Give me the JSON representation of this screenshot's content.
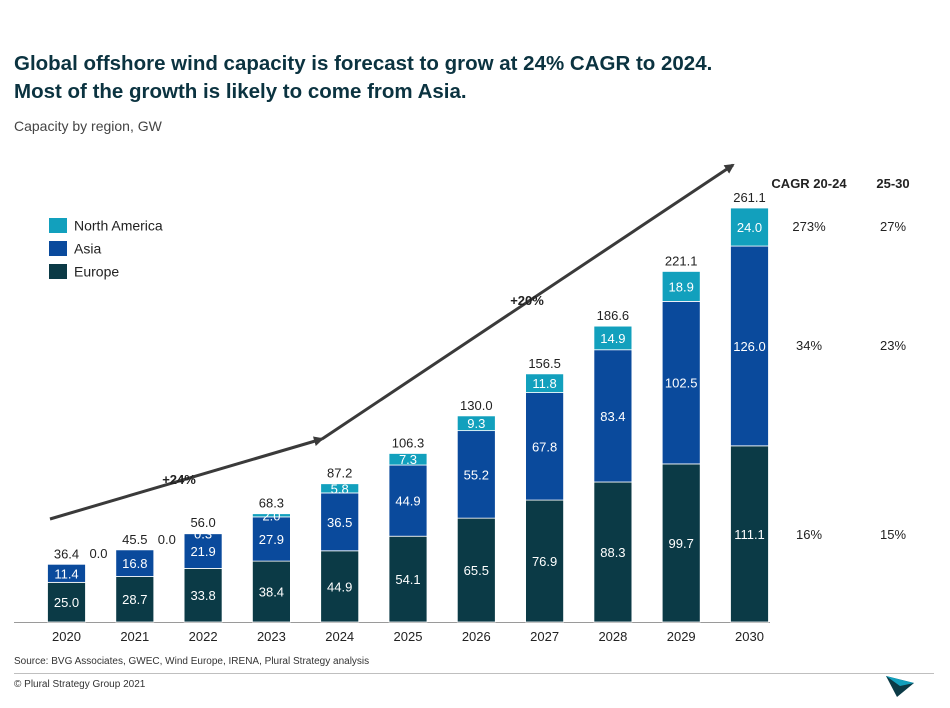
{
  "title_line1": "Global offshore wind capacity is forecast to grow at 24% CAGR to 2024.",
  "title_line2": "Most of the growth is likely to come from Asia.",
  "subtitle": "Capacity by region, GW",
  "source": "Source: BVG Associates, GWEC, Wind Europe, IRENA, Plural Strategy analysis",
  "copyright": "© Plural Strategy Group 2021",
  "colors": {
    "europe": "#0b3a46",
    "asia": "#0a4a9c",
    "north_america": "#12a0bd",
    "text": "#222222"
  },
  "chart_data": {
    "type": "bar",
    "stacked": true,
    "categories": [
      "2020",
      "2021",
      "2022",
      "2023",
      "2024",
      "2025",
      "2026",
      "2027",
      "2028",
      "2029",
      "2030"
    ],
    "series": [
      {
        "name": "Europe",
        "values": [
          25.0,
          28.7,
          33.8,
          38.4,
          44.9,
          54.1,
          65.5,
          76.9,
          88.3,
          99.7,
          111.1
        ]
      },
      {
        "name": "Asia",
        "values": [
          11.4,
          16.8,
          21.9,
          27.9,
          36.5,
          44.9,
          55.2,
          67.8,
          83.4,
          102.5,
          126.0
        ]
      },
      {
        "name": "North America",
        "values": [
          0.0,
          0.0,
          0.3,
          2.0,
          5.8,
          7.3,
          9.3,
          11.8,
          14.9,
          18.9,
          24.0
        ]
      }
    ],
    "totals": [
      "36.4",
      "45.5",
      "56.0",
      "68.3",
      "87.2",
      "106.3",
      "130.0",
      "156.5",
      "186.6",
      "221.1",
      "261.1"
    ],
    "legend": [
      "North America",
      "Asia",
      "Europe"
    ],
    "legend_position": "top-left",
    "ylim": [
      0,
      261.1
    ],
    "annotations": [
      "+24%",
      "+20%"
    ],
    "cagr_table": {
      "headers": [
        "CAGR 20-24",
        "25-30"
      ],
      "rows": [
        {
          "region": "North America",
          "values": [
            "273%",
            "27%"
          ]
        },
        {
          "region": "Asia",
          "values": [
            "34%",
            "23%"
          ]
        },
        {
          "region": "Europe",
          "values": [
            "16%",
            "15%"
          ]
        }
      ]
    }
  }
}
